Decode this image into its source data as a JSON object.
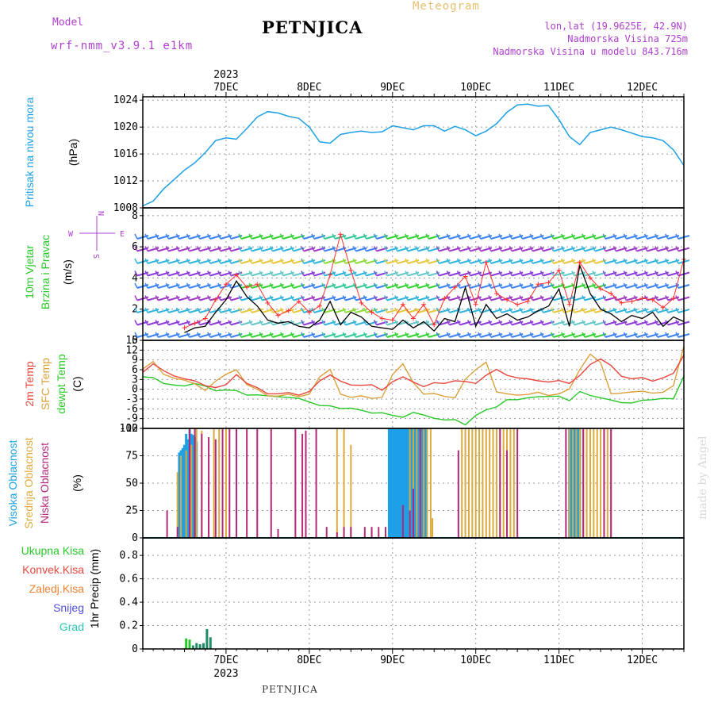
{
  "header": {
    "title": "PETNJICA",
    "meteogram_label": "Meteogram",
    "model_label": "Model",
    "model_name": "wrf-nmm_v3.9.1 e1km",
    "lonlat": "lon,lat (19.9625E, 42.9N)",
    "elevation": "Nadmorska Visina 725m",
    "model_elevation": "Nadmorska Visina u modelu 843.716m"
  },
  "footer": {
    "station": "PETNJICA",
    "credit": "made by Angel"
  },
  "colors": {
    "pressure": "#1ea0e6",
    "temp2m": "#e8463c",
    "sfc_temp": "#dca03c",
    "dewpoint": "#28c828",
    "high_cloud": "#1ea0e6",
    "mid_cloud": "#dcaa3c",
    "low_cloud": "#b4287a",
    "total_precip": "#28c828",
    "convective": "#e8463c",
    "frozen": "#f08232",
    "snow": "#5050dc",
    "graupel": "#28c8b4",
    "wind_speed": "#000000",
    "wind_gust": "#ff3030",
    "compass": "#b040d0",
    "grid": "#9a9a9a"
  },
  "chart_data": [
    {
      "type": "line",
      "ylabel": "Pritisak na nivou mora",
      "unit": "(hPa)",
      "ylim": [
        1008,
        1024.5
      ],
      "yticks": [
        1008,
        1012,
        1016,
        1020,
        1024
      ],
      "x_unit": "hours from 07DEC 00UTC",
      "x_range": [
        -12,
        144
      ],
      "top_axis_year": "2023",
      "top_axis_dates": [
        "7DEC",
        "8DEC",
        "9DEC",
        "10DEC",
        "11DEC",
        "12DEC"
      ],
      "grid": true,
      "series": [
        {
          "x": [
            -12,
            -9,
            -6,
            -3,
            0,
            3,
            6,
            9,
            12,
            15,
            18,
            21,
            24,
            27,
            30,
            33,
            36,
            39,
            42,
            45,
            48,
            51,
            54,
            57,
            60,
            63,
            66,
            69,
            72,
            75,
            78,
            81,
            84,
            87,
            90,
            93,
            96,
            99,
            102,
            105,
            108,
            111,
            114,
            117,
            120,
            123,
            126,
            129,
            132,
            135,
            138,
            141,
            144
          ],
          "y": [
            1008.3,
            1009,
            1010.8,
            1012.2,
            1013.6,
            1014.7,
            1016.2,
            1018,
            1018.4,
            1018.2,
            1019.8,
            1021.5,
            1022.3,
            1022.1,
            1021.6,
            1021.3,
            1020,
            1017.8,
            1017.6,
            1018.9,
            1019.2,
            1019.4,
            1019.2,
            1019.3,
            1020.2,
            1019.9,
            1019.6,
            1020.2,
            1020.2,
            1019.4,
            1020.1,
            1019.6,
            1018.7,
            1019.4,
            1020.5,
            1022.2,
            1023.3,
            1023.4,
            1023.1,
            1023.2,
            1021.1,
            1018.6,
            1017.4,
            1019.2,
            1019.6,
            1020,
            1019.6,
            1019.1,
            1018.6,
            1018.4,
            1018,
            1016.6,
            1014.3
          ]
        }
      ]
    },
    {
      "type": "line",
      "ylabel": "10m Vjetar Brzina i Pravac",
      "unit": "(m/s)",
      "ylim": [
        0,
        8.5
      ],
      "yticks": [
        0,
        2,
        4,
        6,
        8
      ],
      "compass": {
        "n": "N",
        "w": "W",
        "e": "E",
        "s": "S"
      },
      "grid": true,
      "series": [
        {
          "name": "speed",
          "x": [
            0,
            3,
            6,
            9,
            12,
            15,
            18,
            21,
            24,
            27,
            30,
            33,
            36,
            39,
            42,
            45,
            48,
            51,
            54,
            57,
            60,
            63,
            66,
            69,
            72,
            75,
            78,
            81,
            84,
            87,
            90,
            93,
            96,
            99,
            102,
            105,
            108,
            111,
            114,
            117,
            120,
            123,
            126,
            129,
            132,
            135,
            138,
            141,
            144
          ],
          "y": [
            0.5,
            0.8,
            0.9,
            1.8,
            2.6,
            3.8,
            2.8,
            2.2,
            1.3,
            1.1,
            1.2,
            0.9,
            0.8,
            1.3,
            2.5,
            1.0,
            1.8,
            1.5,
            0.9,
            0.8,
            0.7,
            1.3,
            0.8,
            1.2,
            0.6,
            1.4,
            1.2,
            3.4,
            0.9,
            2.3,
            1.4,
            1.7,
            1.3,
            1.5,
            1.9,
            2.2,
            3.3,
            0.9,
            4.8,
            3.0,
            2.0,
            1.7,
            1.2,
            1.6,
            1.4,
            1.8,
            0.9,
            1.5,
            1.2
          ]
        },
        {
          "name": "gust",
          "x": [
            0,
            3,
            6,
            9,
            12,
            15,
            18,
            21,
            24,
            27,
            30,
            33,
            36,
            39,
            42,
            45,
            48,
            51,
            54,
            57,
            60,
            63,
            66,
            69,
            72,
            75,
            78,
            81,
            84,
            87,
            90,
            93,
            96,
            99,
            102,
            105,
            108,
            111,
            114,
            117,
            120,
            123,
            126,
            129,
            132,
            135,
            138,
            141,
            144
          ],
          "y": [
            0.8,
            1.1,
            1.4,
            2.6,
            3.6,
            4.2,
            3.4,
            3.6,
            2.4,
            1.6,
            1.9,
            2.5,
            1.8,
            2.2,
            4.2,
            6.8,
            4.5,
            2.4,
            1.8,
            1.4,
            1.3,
            2.3,
            1.4,
            2.3,
            1.0,
            2.7,
            3.4,
            4.1,
            2.3,
            5.0,
            3.0,
            2.6,
            2.3,
            2.5,
            3.6,
            3.7,
            4.5,
            2.3,
            5.0,
            4.0,
            3.3,
            3.0,
            2.4,
            2.5,
            2.7,
            2.6,
            2.1,
            2.7,
            5.2
          ]
        }
      ]
    },
    {
      "type": "line",
      "ylabel": "2m Temp / SFC Temp / dewpt Temp",
      "unit": "(C)",
      "ylim": [
        -12,
        15
      ],
      "yticks": [
        -12,
        -9,
        -6,
        -3,
        0,
        3,
        6,
        9,
        12,
        15
      ],
      "grid": true,
      "series": [
        {
          "name": "2m Temp",
          "x": [
            -12,
            -9,
            -6,
            -3,
            0,
            3,
            6,
            9,
            12,
            15,
            18,
            21,
            24,
            27,
            30,
            33,
            36,
            39,
            42,
            45,
            48,
            51,
            54,
            57,
            60,
            63,
            66,
            69,
            72,
            75,
            78,
            81,
            84,
            87,
            90,
            93,
            96,
            99,
            102,
            105,
            108,
            111,
            114,
            117,
            120,
            123,
            126,
            129,
            132,
            135,
            138,
            141,
            144
          ],
          "y": [
            5.2,
            7.8,
            5.7,
            4.1,
            3.2,
            2.6,
            1.1,
            0.5,
            1.4,
            4.5,
            1.8,
            0.5,
            -1.4,
            -1.4,
            -1.0,
            -1.8,
            -0.7,
            2.6,
            4.4,
            2.5,
            1.3,
            1.2,
            1.4,
            -0.3,
            2.3,
            3.8,
            2.2,
            0.8,
            2.0,
            1.8,
            2.6,
            2.4,
            1.8,
            4.3,
            6.1,
            4.3,
            3.5,
            3.2,
            2.6,
            2.2,
            2.7,
            1.8,
            4.2,
            7.6,
            9.3,
            7.3,
            4.0,
            3.2,
            3.6,
            2.5,
            3.5,
            4.9,
            10.5
          ]
        },
        {
          "name": "SFC Temp",
          "x": [
            -12,
            -9,
            -6,
            -3,
            0,
            3,
            6,
            9,
            12,
            15,
            18,
            21,
            24,
            27,
            30,
            33,
            36,
            39,
            42,
            45,
            48,
            51,
            54,
            57,
            60,
            63,
            66,
            69,
            72,
            75,
            78,
            81,
            84,
            87,
            90,
            93,
            96,
            99,
            102,
            105,
            108,
            111,
            114,
            117,
            120,
            123,
            126,
            129,
            132,
            135,
            138,
            141,
            144
          ],
          "y": [
            6.2,
            8.5,
            4.6,
            3.4,
            2.8,
            1.7,
            -0.4,
            2.5,
            4.6,
            6.0,
            1.4,
            0.0,
            -2.0,
            -2.1,
            -1.5,
            -2.3,
            -1.5,
            3.8,
            6.1,
            -1.5,
            -2.5,
            -2.0,
            -2.8,
            -2.5,
            4.5,
            7.8,
            2.0,
            -1.5,
            -1.3,
            -2.2,
            -2.6,
            3.1,
            6.0,
            8.3,
            -0.8,
            -1.4,
            -1.8,
            -1.6,
            -0.9,
            -1.9,
            -1.4,
            0.1,
            6.0,
            10.8,
            8.2,
            -1.4,
            -1.2,
            -0.8,
            -0.6,
            -1.2,
            -0.9,
            1.1,
            13.2
          ]
        },
        {
          "name": "dewpt Temp",
          "x": [
            -12,
            -9,
            -6,
            -3,
            0,
            3,
            6,
            9,
            12,
            15,
            18,
            21,
            24,
            27,
            30,
            33,
            36,
            39,
            42,
            45,
            48,
            51,
            54,
            57,
            60,
            63,
            66,
            69,
            72,
            75,
            78,
            81,
            84,
            87,
            90,
            93,
            96,
            99,
            102,
            105,
            108,
            111,
            114,
            117,
            120,
            123,
            126,
            129,
            132,
            135,
            138,
            141,
            144
          ],
          "y": [
            3.8,
            3.6,
            1.8,
            1.3,
            1.0,
            1.8,
            1.0,
            -0.5,
            -0.2,
            -0.4,
            -1.8,
            -1.7,
            -2.0,
            -2.3,
            -2.5,
            -2.8,
            -3.9,
            -5.0,
            -5.1,
            -5.9,
            -5.8,
            -6.4,
            -7.3,
            -7.2,
            -8.0,
            -8.6,
            -7.1,
            -7.9,
            -8.9,
            -9.4,
            -9.3,
            -10.9,
            -8.0,
            -6.3,
            -5.4,
            -3.2,
            -3.2,
            -2.6,
            -2.3,
            -2.2,
            -2.1,
            -3.5,
            -0.7,
            -1.9,
            -2.6,
            -3.3,
            -4.1,
            -4.2,
            -3.4,
            -3.2,
            -2.8,
            -2.9,
            4.0
          ]
        }
      ]
    },
    {
      "type": "bar",
      "ylabel": "Visoka Oblacnost / Srednja Oblacnost / Niska Oblacnost",
      "unit": "(%)",
      "ylim": [
        0,
        100
      ],
      "yticks": [
        0,
        25,
        50,
        75,
        100
      ],
      "grid": true,
      "series": [
        {
          "name": "Visoka Oblacnost",
          "x": [
            -1.5,
            -1,
            -0.5,
            0,
            0.5,
            1,
            1.5,
            2,
            2.5,
            3,
            3.5,
            59,
            59.5,
            60,
            60.5,
            61,
            61.5,
            62,
            62.5,
            63,
            63.5,
            64,
            64.5,
            65,
            65.5,
            66,
            66.5,
            67,
            67.5,
            68,
            68.5,
            69,
            69.5,
            111,
            111.5,
            112,
            112.5,
            113,
            113.5,
            114
          ],
          "y": [
            78,
            80,
            82,
            85,
            95,
            90,
            99,
            95,
            94,
            92,
            88,
            100,
            100,
            100,
            100,
            100,
            100,
            100,
            100,
            100,
            100,
            100,
            100,
            100,
            100,
            100,
            100,
            100,
            100,
            100,
            100,
            100,
            100,
            100,
            100,
            100,
            100,
            100,
            100,
            100
          ]
        },
        {
          "name": "Srednja Oblacnost",
          "x": [
            -2,
            -1,
            0.5,
            2,
            3.5,
            5,
            7,
            8.5,
            10,
            12,
            44,
            46,
            48,
            65,
            66,
            67,
            68,
            69,
            70,
            71,
            71.5,
            80,
            81,
            82,
            83,
            84,
            85,
            86,
            87,
            88,
            89,
            90,
            91,
            92,
            93,
            94,
            95,
            111,
            112,
            113,
            114,
            115,
            116,
            117,
            118,
            119,
            120,
            121,
            122,
            123
          ],
          "y": [
            60,
            75,
            80,
            85,
            100,
            98,
            55,
            100,
            100,
            100,
            100,
            100,
            85,
            100,
            100,
            100,
            100,
            100,
            100,
            100,
            18,
            100,
            100,
            100,
            100,
            100,
            100,
            100,
            100,
            100,
            100,
            100,
            100,
            100,
            100,
            100,
            100,
            100,
            100,
            100,
            100,
            100,
            100,
            100,
            100,
            100,
            100,
            100,
            100,
            100
          ]
        },
        {
          "name": "Niska Oblacnost",
          "x": [
            -5,
            -2,
            1.5,
            3,
            5,
            7,
            9,
            11,
            13,
            15,
            18,
            21,
            25,
            27,
            32,
            34,
            35,
            38,
            41,
            44,
            46,
            48,
            52,
            54,
            56,
            58,
            63,
            65,
            66,
            68,
            79,
            91,
            93,
            96,
            110,
            115,
            121,
            123
          ],
          "y": [
            25,
            10,
            100,
            100,
            95,
            92,
            90,
            100,
            100,
            100,
            100,
            100,
            100,
            8,
            100,
            95,
            98,
            100,
            10,
            5,
            10,
            10,
            10,
            10,
            10,
            10,
            30,
            25,
            45,
            100,
            80,
            100,
            80,
            100,
            100,
            100,
            100,
            100
          ]
        }
      ]
    },
    {
      "type": "bar",
      "ylabel": "1hr Precip",
      "unit": "(mm)",
      "ylim": [
        0,
        0.95
      ],
      "yticks": [
        0,
        0.2,
        0.4,
        0.6,
        0.8
      ],
      "bottom_axis_dates": [
        "7DEC",
        "8DEC",
        "9DEC",
        "10DEC",
        "11DEC",
        "12DEC"
      ],
      "bottom_axis_year": "2023",
      "grid": true,
      "legend": [
        "Ukupna Kisa",
        "Konvek.Kisa",
        "Zaledj.Kisa",
        "Snijeg",
        "Grad"
      ],
      "series": [
        {
          "name": "Ukupna Kisa",
          "x": [
            0.5,
            1.5,
            2.5,
            3.5,
            4.5,
            5.5,
            6.5,
            7.5
          ],
          "y": [
            0.09,
            0.08,
            0.03,
            0.05,
            0.04,
            0.05,
            0.17,
            0.1
          ]
        }
      ]
    }
  ]
}
